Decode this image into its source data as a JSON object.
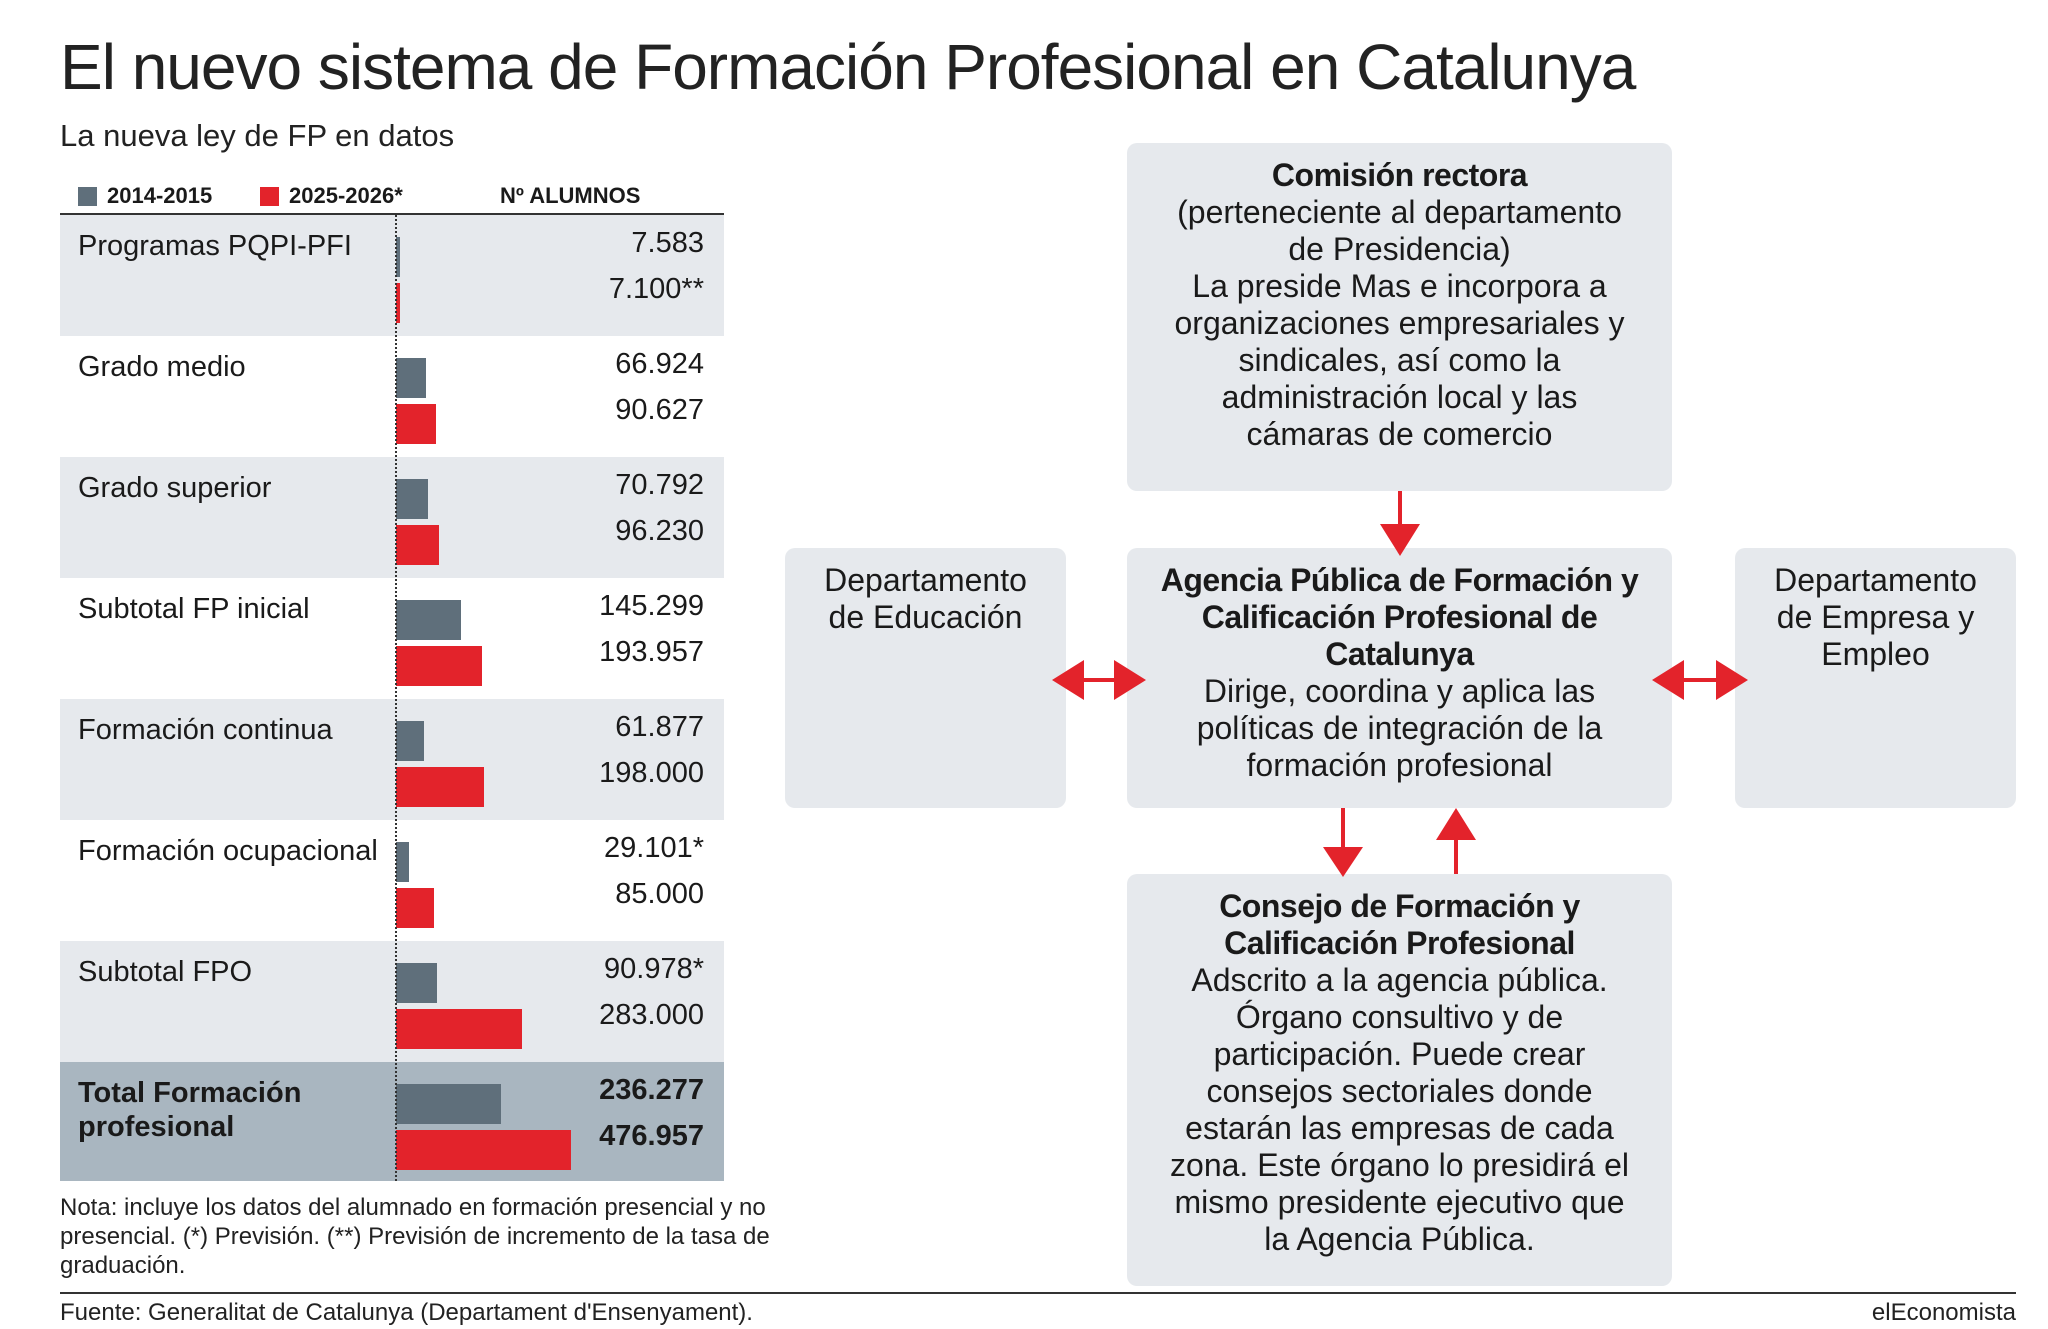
{
  "header": {
    "title": "El nuevo sistema de Formación Profesional en Catalunya",
    "subtitle": "La nueva ley de FP en datos"
  },
  "colors": {
    "series_2014": "#5f6f7b",
    "series_2025": "#e3232b",
    "row_shade": "#e6e9ed",
    "total_shade": "#a9b6c0"
  },
  "chart_data": {
    "type": "bar",
    "orientation": "horizontal",
    "title": "La nueva ley de FP en datos",
    "value_header": "Nº ALUMNOS",
    "categories": [
      "Programas PQPI-PFI",
      "Grado medio",
      "Grado superior",
      "Subtotal FP inicial",
      "Formación continua",
      "Formación ocupacional",
      "Subtotal FPO",
      "Total Formación profesional"
    ],
    "series": [
      {
        "name": "2014-2015",
        "values": [
          7583,
          66924,
          70792,
          145299,
          61877,
          29101,
          90978,
          236277
        ]
      },
      {
        "name": "2025-2026*",
        "values": [
          7100,
          90627,
          96230,
          193957,
          198000,
          85000,
          283000,
          476957
        ]
      }
    ],
    "value_labels": [
      [
        "7.583",
        "7.100**"
      ],
      [
        "66.924",
        "90.627"
      ],
      [
        "70.792",
        "96.230"
      ],
      [
        "145.299",
        "193.957"
      ],
      [
        "61.877",
        "198.000"
      ],
      [
        "29.101*",
        "85.000"
      ],
      [
        "90.978*",
        "283.000"
      ],
      [
        "236.277",
        "476.957"
      ]
    ],
    "xlim": [
      0,
      500000
    ],
    "legend": "top"
  },
  "note": "Nota: incluye los datos del alumnado en formación presencial y no presencial. (*) Previsión. (**) Previsión de incremento de la tasa de graduación.",
  "diagram": {
    "comision": {
      "title": "Comisión rectora",
      "lines": [
        "(perteneciente al departamento",
        "de Presidencia)",
        "La preside Mas e incorpora a",
        "organizaciones empresariales y",
        "sindicales, así como la",
        "administración local y las",
        "cámaras de comercio"
      ]
    },
    "agencia": {
      "title_lines": [
        "Agencia Pública de Formación y",
        "Calificación Profesional de",
        "Catalunya"
      ],
      "lines": [
        "Dirige, coordina y aplica las",
        "políticas de integración de la",
        "formación profesional"
      ]
    },
    "educacion": {
      "lines": [
        "Departamento",
        "de Educación"
      ]
    },
    "empresa": {
      "lines": [
        "Departamento",
        "de Empresa y",
        "Empleo"
      ]
    },
    "consejo": {
      "title_lines": [
        "Consejo de Formación y",
        "Calificación Profesional"
      ],
      "lines": [
        "Adscrito a la agencia pública.",
        "Órgano consultivo y de",
        "participación. Puede crear",
        "consejos sectoriales donde",
        "estarán las empresas de cada",
        "zona. Este órgano lo presidirá el",
        "mismo presidente ejecutivo que",
        "la Agencia Pública."
      ]
    }
  },
  "footer": {
    "source": "Fuente: Generalitat de Catalunya (Departament d'Ensenyament).",
    "brand": "elEconomista"
  }
}
